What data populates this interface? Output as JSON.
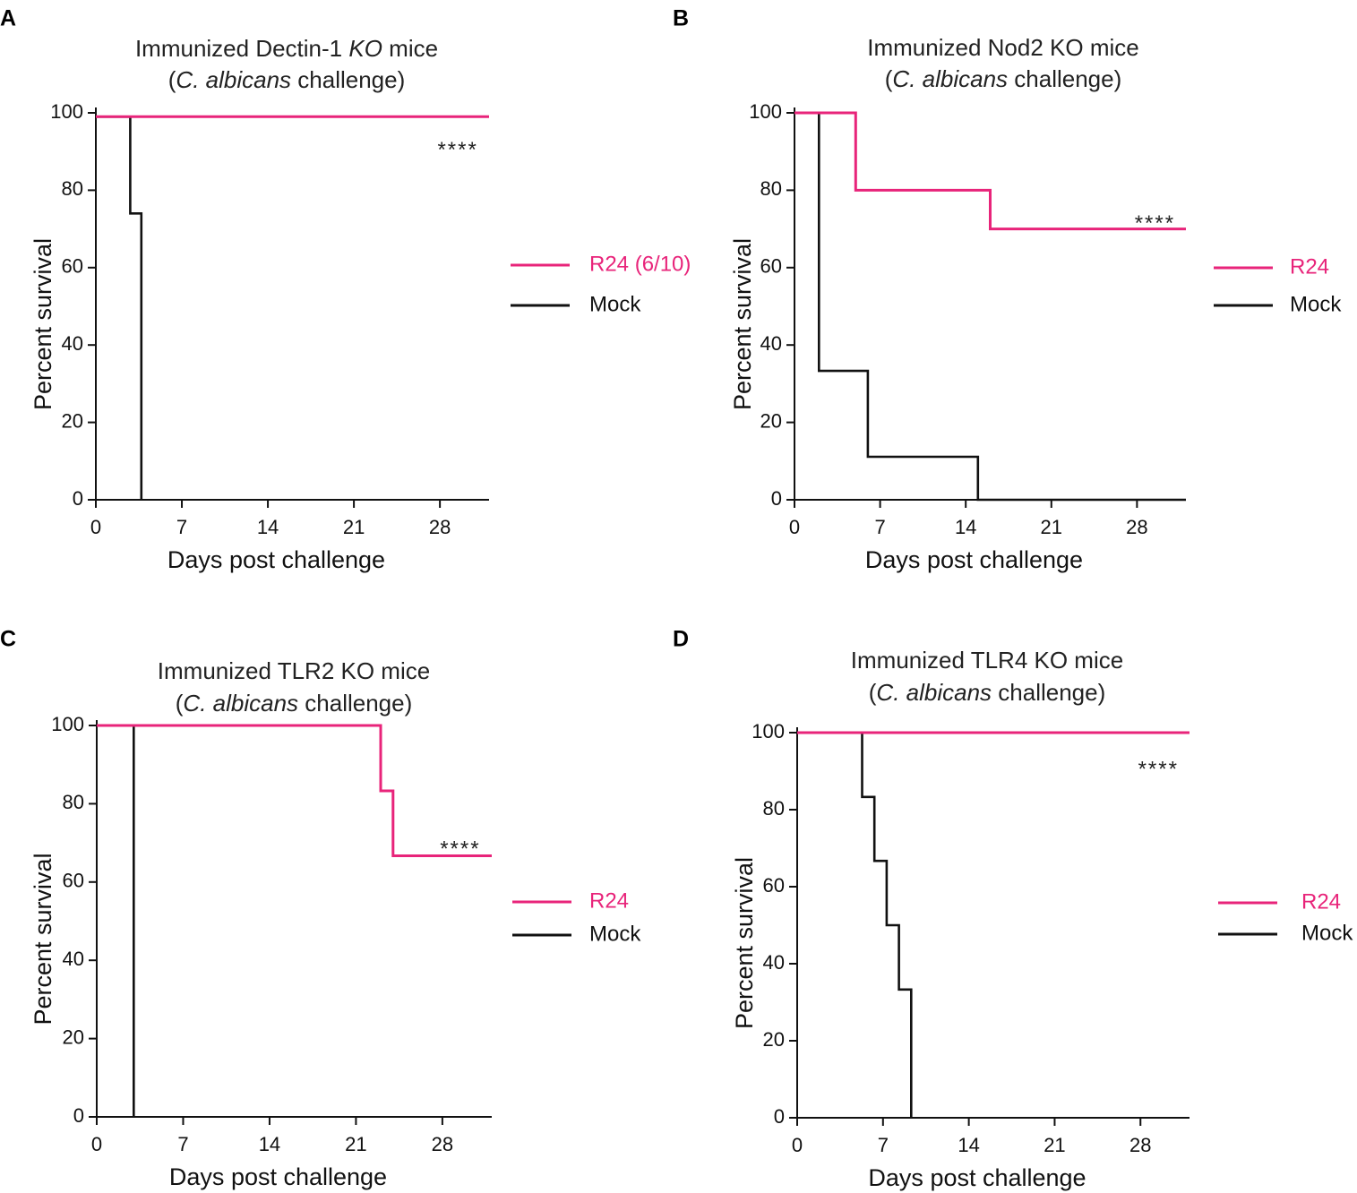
{
  "figure": {
    "colors": {
      "r24": "#e8247a",
      "mock": "#111111"
    }
  },
  "chart_data": [
    {
      "panel": "A",
      "type": "line",
      "title_parts": [
        [
          "Immunized Dectin-1 ",
          false
        ],
        [
          "KO",
          true
        ],
        [
          " mice",
          false
        ]
      ],
      "subtitle_parts": [
        [
          "(",
          false
        ],
        [
          "C. albicans",
          true
        ],
        [
          " challenge)",
          false
        ]
      ],
      "xlabel": "Days post challenge",
      "ylabel": "Percent survival",
      "xlim": [
        0,
        32
      ],
      "ylim": [
        0,
        100
      ],
      "xticks": [
        0,
        7,
        14,
        21,
        28
      ],
      "yticks": [
        0,
        20,
        40,
        60,
        80,
        100
      ],
      "significance": "****",
      "significance_x": 28,
      "significance_y": 92,
      "series": [
        {
          "name": "R24 (6/10)",
          "color": "#e8247a",
          "x": [
            0,
            32
          ],
          "y": [
            99,
            99
          ]
        },
        {
          "name": "Mock",
          "color": "#111111",
          "x": [
            0,
            2.8,
            2.8,
            3.7,
            3.7
          ],
          "y": [
            99,
            99,
            74,
            74,
            0
          ]
        }
      ]
    },
    {
      "panel": "B",
      "type": "line",
      "title_parts": [
        [
          "Immunized Nod2 KO mice",
          false
        ]
      ],
      "subtitle_parts": [
        [
          "(",
          false
        ],
        [
          "C. albicans",
          true
        ],
        [
          " challenge)",
          false
        ]
      ],
      "xlabel": "Days post challenge",
      "ylabel": "Percent survival",
      "xlim": [
        0,
        32
      ],
      "ylim": [
        0,
        100
      ],
      "xticks": [
        0,
        7,
        14,
        21,
        28
      ],
      "yticks": [
        0,
        20,
        40,
        60,
        80,
        100
      ],
      "significance": "****",
      "significance_x": 28,
      "significance_y": 73,
      "series": [
        {
          "name": "R24",
          "color": "#e8247a",
          "x": [
            0,
            5,
            5,
            16,
            16,
            32
          ],
          "y": [
            100,
            100,
            80,
            80,
            70,
            70
          ]
        },
        {
          "name": "Mock",
          "color": "#111111",
          "x": [
            0,
            2,
            2,
            6,
            6,
            15,
            15,
            32
          ],
          "y": [
            100,
            100,
            33.3,
            33.3,
            11.1,
            11.1,
            0,
            0
          ]
        }
      ]
    },
    {
      "panel": "C",
      "type": "line",
      "title_parts": [
        [
          "Immunized TLR2 KO mice",
          false
        ]
      ],
      "subtitle_parts": [
        [
          "(",
          false
        ],
        [
          "C. albicans",
          true
        ],
        [
          " challenge)",
          false
        ]
      ],
      "xlabel": "Days post challenge",
      "ylabel": "Percent survival",
      "xlim": [
        0,
        32
      ],
      "ylim": [
        0,
        100
      ],
      "xticks": [
        0,
        7,
        14,
        21,
        28
      ],
      "yticks": [
        0,
        20,
        40,
        60,
        80,
        100
      ],
      "significance": "****",
      "significance_x": 28,
      "significance_y": 70,
      "series": [
        {
          "name": "R24",
          "color": "#e8247a",
          "x": [
            0,
            23,
            23,
            24,
            24,
            32
          ],
          "y": [
            100,
            100,
            83.3,
            83.3,
            66.7,
            66.7
          ]
        },
        {
          "name": "Mock",
          "color": "#111111",
          "x": [
            0,
            3,
            3
          ],
          "y": [
            100,
            100,
            0
          ]
        }
      ]
    },
    {
      "panel": "D",
      "type": "line",
      "title_parts": [
        [
          "Immunized TLR4 KO mice",
          false
        ]
      ],
      "subtitle_parts": [
        [
          "(",
          false
        ],
        [
          "C. albicans",
          true
        ],
        [
          " challenge)",
          false
        ]
      ],
      "xlabel": "Days post challenge",
      "ylabel": "Percent survival",
      "xlim": [
        0,
        32
      ],
      "ylim": [
        0,
        100
      ],
      "xticks": [
        0,
        7,
        14,
        21,
        28
      ],
      "yticks": [
        0,
        20,
        40,
        60,
        80,
        100
      ],
      "significance": "****",
      "significance_x": 28,
      "significance_y": 92,
      "series": [
        {
          "name": "R24",
          "color": "#e8247a",
          "x": [
            0,
            32
          ],
          "y": [
            100,
            100
          ]
        },
        {
          "name": "Mock",
          "color": "#111111",
          "x": [
            0,
            5.3,
            5.3,
            6.3,
            6.3,
            7.3,
            7.3,
            8.3,
            8.3,
            9.3,
            9.3
          ],
          "y": [
            100,
            100,
            83.3,
            83.3,
            66.7,
            66.7,
            50,
            50,
            33.3,
            33.3,
            0
          ]
        }
      ]
    }
  ]
}
